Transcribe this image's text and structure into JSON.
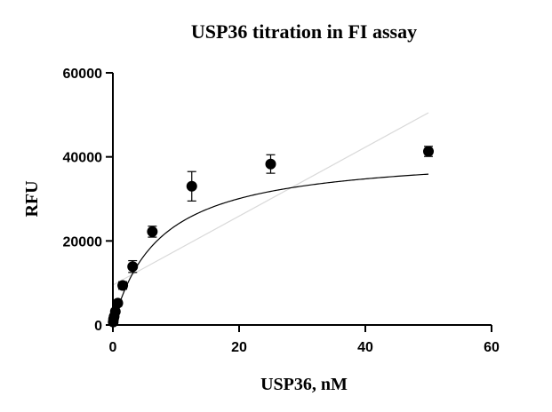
{
  "chart_data": {
    "type": "scatter",
    "title": "USP36 titration in FI assay",
    "xlabel": "USP36, nM",
    "ylabel": "RFU",
    "xlim": [
      0,
      60
    ],
    "ylim": [
      0,
      60000
    ],
    "x_ticks": [
      "0",
      "20",
      "40",
      "60"
    ],
    "y_ticks": [
      "0",
      "20000",
      "40000",
      "60000"
    ],
    "grid": false,
    "legend": "none",
    "series": [
      {
        "x": [
          0.05,
          0.1,
          0.2,
          0.39,
          0.78,
          1.56,
          3.13,
          6.25,
          12.5,
          25,
          50
        ],
        "y": [
          700,
          1400,
          2000,
          3200,
          5200,
          9400,
          13900,
          22200,
          33000,
          38300,
          41300
        ],
        "error": [
          500,
          500,
          500,
          600,
          700,
          900,
          1400,
          1300,
          3500,
          2200,
          1200
        ]
      }
    ],
    "fit_curve": {
      "model": "one-site binding",
      "ymax": 41200,
      "kd": 7.4
    },
    "reference_line": {
      "x": [
        0,
        50
      ],
      "y": [
        9500,
        50500
      ],
      "color": "#d9d9d9"
    },
    "colors": {
      "points": "#000000",
      "fit": "#000000",
      "reference": "#d9d9d9"
    }
  }
}
